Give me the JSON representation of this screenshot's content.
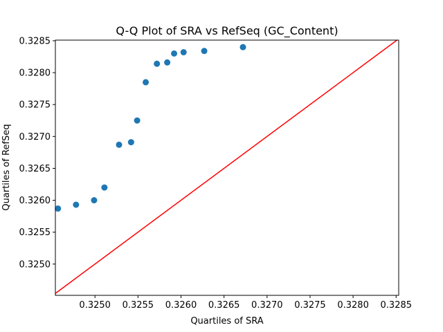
{
  "chart_data": {
    "type": "scatter",
    "title": "Q-Q Plot of SRA vs RefSeq (GC_Content)",
    "xlabel": "Quartiles of SRA",
    "ylabel": "Quartiles of RefSeq",
    "xlim": [
      0.32454,
      0.32853
    ],
    "ylim": [
      0.32451,
      0.32851
    ],
    "xticks": [
      "0.3250",
      "0.3255",
      "0.3260",
      "0.3265",
      "0.3270",
      "0.3275",
      "0.3280",
      "0.3285"
    ],
    "xtick_values": [
      0.325,
      0.3255,
      0.326,
      0.3265,
      0.327,
      0.3275,
      0.328,
      0.3285
    ],
    "yticks": [
      "0.3250",
      "0.3255",
      "0.3260",
      "0.3265",
      "0.3270",
      "0.3275",
      "0.3280",
      "0.3285"
    ],
    "ytick_values": [
      0.325,
      0.3255,
      0.326,
      0.3265,
      0.327,
      0.3275,
      0.328,
      0.3285
    ],
    "grid": false,
    "point_color": "#1f77b4",
    "reference_line_color": "#ff0000",
    "reference_line": "y = x",
    "points": [
      {
        "x": 0.32457,
        "y": 0.32587
      },
      {
        "x": 0.32478,
        "y": 0.32593
      },
      {
        "x": 0.32499,
        "y": 0.326
      },
      {
        "x": 0.32511,
        "y": 0.3262
      },
      {
        "x": 0.32528,
        "y": 0.32687
      },
      {
        "x": 0.32542,
        "y": 0.32691
      },
      {
        "x": 0.32549,
        "y": 0.32725
      },
      {
        "x": 0.32559,
        "y": 0.32785
      },
      {
        "x": 0.32572,
        "y": 0.32814
      },
      {
        "x": 0.32584,
        "y": 0.32816
      },
      {
        "x": 0.32592,
        "y": 0.3283
      },
      {
        "x": 0.32603,
        "y": 0.32832
      },
      {
        "x": 0.32627,
        "y": 0.32834
      },
      {
        "x": 0.32672,
        "y": 0.3284
      }
    ]
  }
}
